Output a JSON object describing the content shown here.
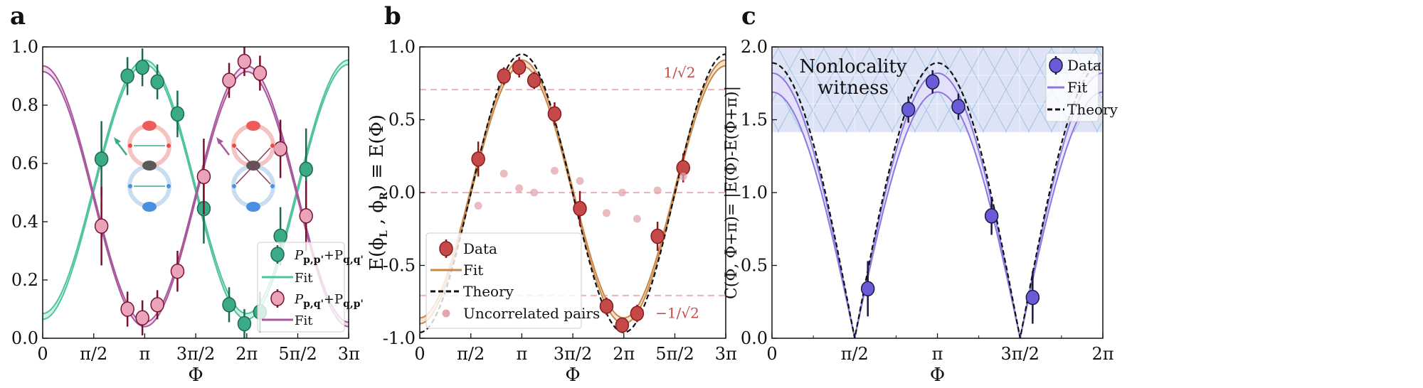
{
  "panels": [
    {
      "label": "a",
      "chart_data": {
        "type": "scatter",
        "xlabel": "Φ",
        "ylabel": "",
        "xlim": [
          0,
          9.42
        ],
        "ylim": [
          0,
          1
        ],
        "x_ticks": [
          0,
          1.571,
          3.142,
          4.712,
          6.283,
          7.854,
          9.425
        ],
        "x_tick_labels": [
          "0",
          "π/2",
          "π",
          "3π/2",
          "2π",
          "5π/2",
          "3π"
        ],
        "y_ticks": [
          0,
          0.2,
          0.4,
          0.6,
          0.8,
          1.0
        ],
        "y_tick_labels": [
          "0.0",
          "0.2",
          "0.4",
          "0.6",
          "0.8",
          "1.0"
        ],
        "legend_position": "bottom-right",
        "series": [
          {
            "name": "Pp,p'+Pq,q'",
            "name_parts": [
              "P",
              "p,p'",
              "+P",
              "q,q'"
            ],
            "kind": "data",
            "color": "#3aaa88",
            "edge": "#1e6b4c",
            "x": [
              1.81,
              2.61,
              3.07,
              3.53,
              4.15,
              4.96,
              5.74,
              6.21,
              6.69,
              7.32,
              8.11
            ],
            "y": [
              0.615,
              0.9,
              0.93,
              0.88,
              0.77,
              0.445,
              0.115,
              0.05,
              0.09,
              0.35,
              0.58
            ],
            "err": [
              0.13,
              0.065,
              0.065,
              0.06,
              0.08,
              0.12,
              0.06,
              0.05,
              0.07,
              0.1,
              0.14
            ]
          },
          {
            "name": "Fit",
            "kind": "fit",
            "color": "#4fc49c",
            "band_fill": "#c8f0e2",
            "peak_at": 3.14,
            "band_peak": [
              0.94,
              0.955
            ],
            "band_trough": [
              0.065,
              0.085
            ]
          },
          {
            "name": "Pp,q'+Pq,p'",
            "name_parts": [
              "P",
              "p,q'",
              "+P",
              "q,p'"
            ],
            "kind": "data",
            "color": "#eaa3b8",
            "edge": "#7a1030",
            "x": [
              1.81,
              2.61,
              3.07,
              3.53,
              4.15,
              4.96,
              5.74,
              6.21,
              6.69,
              7.32,
              8.11
            ],
            "y": [
              0.385,
              0.1,
              0.07,
              0.115,
              0.23,
              0.555,
              0.885,
              0.95,
              0.91,
              0.65,
              0.42
            ],
            "err": [
              0.135,
              0.06,
              0.06,
              0.05,
              0.07,
              0.13,
              0.06,
              0.05,
              0.06,
              0.1,
              0.12
            ]
          },
          {
            "name": "Fit",
            "kind": "fit",
            "color": "#a8579c",
            "band_fill": "#f0d2ea",
            "peak_at": 0,
            "band_peak": [
              0.915,
              0.935
            ],
            "band_trough": [
              0.04,
              0.055
            ]
          }
        ]
      }
    },
    {
      "label": "b",
      "chart_data": {
        "type": "scatter",
        "xlabel": "Φ",
        "ylabel_parts": [
          "E(ϕ",
          "L",
          " , ϕ",
          "R",
          ") ≡ E(Φ)"
        ],
        "xlim": [
          0,
          9.42
        ],
        "ylim": [
          -1,
          1
        ],
        "x_ticks": [
          0,
          1.571,
          3.142,
          4.712,
          6.283,
          7.854,
          9.425
        ],
        "x_tick_labels": [
          "0",
          "π/2",
          "π",
          "3π/2",
          "2π",
          "5π/2",
          "3π"
        ],
        "y_ticks": [
          -1,
          -0.5,
          0,
          0.5,
          1
        ],
        "y_tick_labels": [
          "-1.0",
          "-0.5",
          "0.0",
          "0.5",
          "1.0"
        ],
        "reference_lines": [
          0.707,
          0,
          -0.707
        ],
        "annotations": [
          "1/√2",
          "−1/√2"
        ],
        "legend_position": "bottom-left",
        "series": [
          {
            "name": "Data",
            "kind": "data",
            "color": "#c44a4a",
            "edge": "#8b1a1a",
            "x": [
              1.8,
              2.59,
              3.06,
              3.52,
              4.15,
              4.93,
              5.75,
              6.23,
              6.69,
              7.32,
              8.11
            ],
            "y": [
              0.23,
              0.8,
              0.86,
              0.77,
              0.54,
              -0.11,
              -0.78,
              -0.91,
              -0.83,
              -0.3,
              0.17
            ],
            "err": [
              0.12,
              0.06,
              0.07,
              0.06,
              0.08,
              0.12,
              0.06,
              0.05,
              0.06,
              0.1,
              0.1
            ]
          },
          {
            "name": "Fit",
            "kind": "fit",
            "color": "#c8874a",
            "band_fill": "#f3dfc2",
            "peak_at": 3.14,
            "band_peak": [
              0.87,
              0.91
            ],
            "band_trough": [
              -0.9,
              -0.86
            ]
          },
          {
            "name": "Theory",
            "kind": "theory",
            "color": "#111111",
            "peak_at": 3.14,
            "peak": 0.95,
            "trough": -0.96
          },
          {
            "name": "Uncorrelated pairs",
            "kind": "points",
            "color": "#e3a5ac",
            "x": [
              1.8,
              2.59,
              3.06,
              3.52,
              4.15,
              4.93,
              5.75,
              6.23,
              6.69,
              7.32,
              8.11
            ],
            "y": [
              -0.09,
              0.13,
              0.03,
              0.0,
              0.15,
              0.08,
              -0.14,
              0.0,
              -0.18,
              0.015,
              0.11
            ]
          }
        ]
      }
    },
    {
      "label": "c",
      "chart_data": {
        "type": "scatter",
        "xlabel": "Φ",
        "ylabel": "C(Φ, Φ+π)= |E(Φ)-E(Φ+π)|",
        "xlim": [
          0,
          6.283
        ],
        "ylim": [
          0,
          2
        ],
        "x_ticks": [
          0,
          1.571,
          3.142,
          4.712,
          6.283
        ],
        "x_tick_labels": [
          "0",
          "π/2",
          "π",
          "3π/2",
          "2π"
        ],
        "y_ticks": [
          0,
          0.5,
          1.0,
          1.5,
          2.0
        ],
        "y_tick_labels": [
          "0.0",
          "0.5",
          "1.0",
          "1.5",
          "2.0"
        ],
        "shaded_region": {
          "label_lines": [
            "Nonlocality",
            "witness"
          ],
          "y_from": 1.414,
          "y_to": 2.0,
          "fill": "#dfe3f6",
          "hatch": "#9cc6e6"
        },
        "legend_position": "top-right",
        "series": [
          {
            "name": "Data",
            "kind": "data",
            "color": "#6a5cd8",
            "edge": "#1a1a40",
            "x": [
              1.82,
              2.59,
              3.05,
              3.54,
              4.17,
              4.95
            ],
            "y": [
              0.34,
              1.57,
              1.76,
              1.59,
              0.84,
              0.28
            ],
            "err": [
              0.19,
              0.09,
              0.08,
              0.09,
              0.13,
              0.18
            ]
          },
          {
            "name": "Fit",
            "kind": "absfit",
            "color": "#8c78e0",
            "band_fill": "#e6e0fa",
            "band_peak": [
              1.69,
              1.82
            ]
          },
          {
            "name": "Theory",
            "kind": "abstheory",
            "color": "#111111",
            "peak": 1.89
          }
        ]
      }
    }
  ]
}
